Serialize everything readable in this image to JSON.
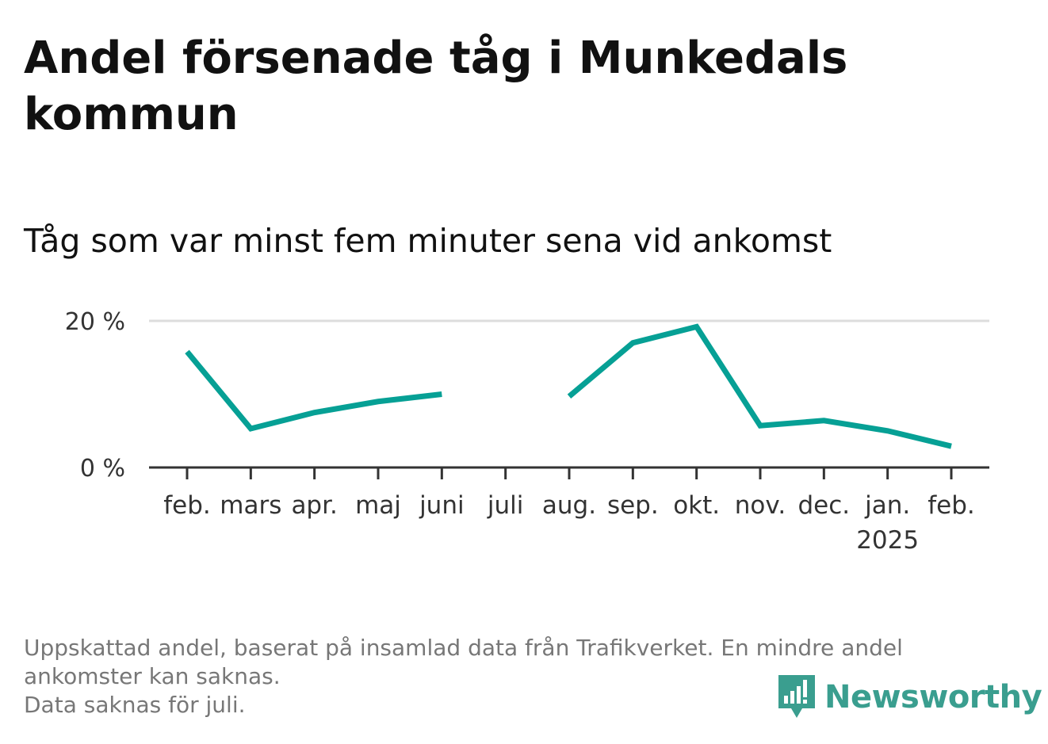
{
  "chart_data": {
    "type": "line",
    "title": "Andel försenade tåg i Munkedals kommun",
    "subtitle": "Tåg som var minst fem minuter sena vid ankomst",
    "categories": [
      "feb.",
      "mars",
      "apr.",
      "maj",
      "juni",
      "juli",
      "aug.",
      "sep.",
      "okt.",
      "nov.",
      "dec.",
      "jan.",
      "feb."
    ],
    "year_labels": [
      {
        "category_index": 11,
        "label": "2025"
      }
    ],
    "series": [
      {
        "values": [
          15.8,
          5.3,
          7.5,
          9.0,
          10.0,
          null,
          9.7,
          17.0,
          19.2,
          5.7,
          6.4,
          5.0,
          2.9
        ]
      }
    ],
    "y_ticks": [
      {
        "value": 0,
        "label": "0 %"
      },
      {
        "value": 20,
        "label": "20 %"
      }
    ],
    "ylim": [
      0,
      20
    ],
    "grid": true,
    "line_color": "#06a095"
  },
  "footnote": {
    "lines": [
      "Uppskattad andel, baserat på insamlad data från Trafikverket. En mindre andel",
      "ankomster kan saknas.",
      "Data saknas för juli."
    ]
  },
  "brand": {
    "name": "Newsworthy",
    "color": "#3a9e8f",
    "icon": "bar-chart-speech-bubble-icon"
  }
}
